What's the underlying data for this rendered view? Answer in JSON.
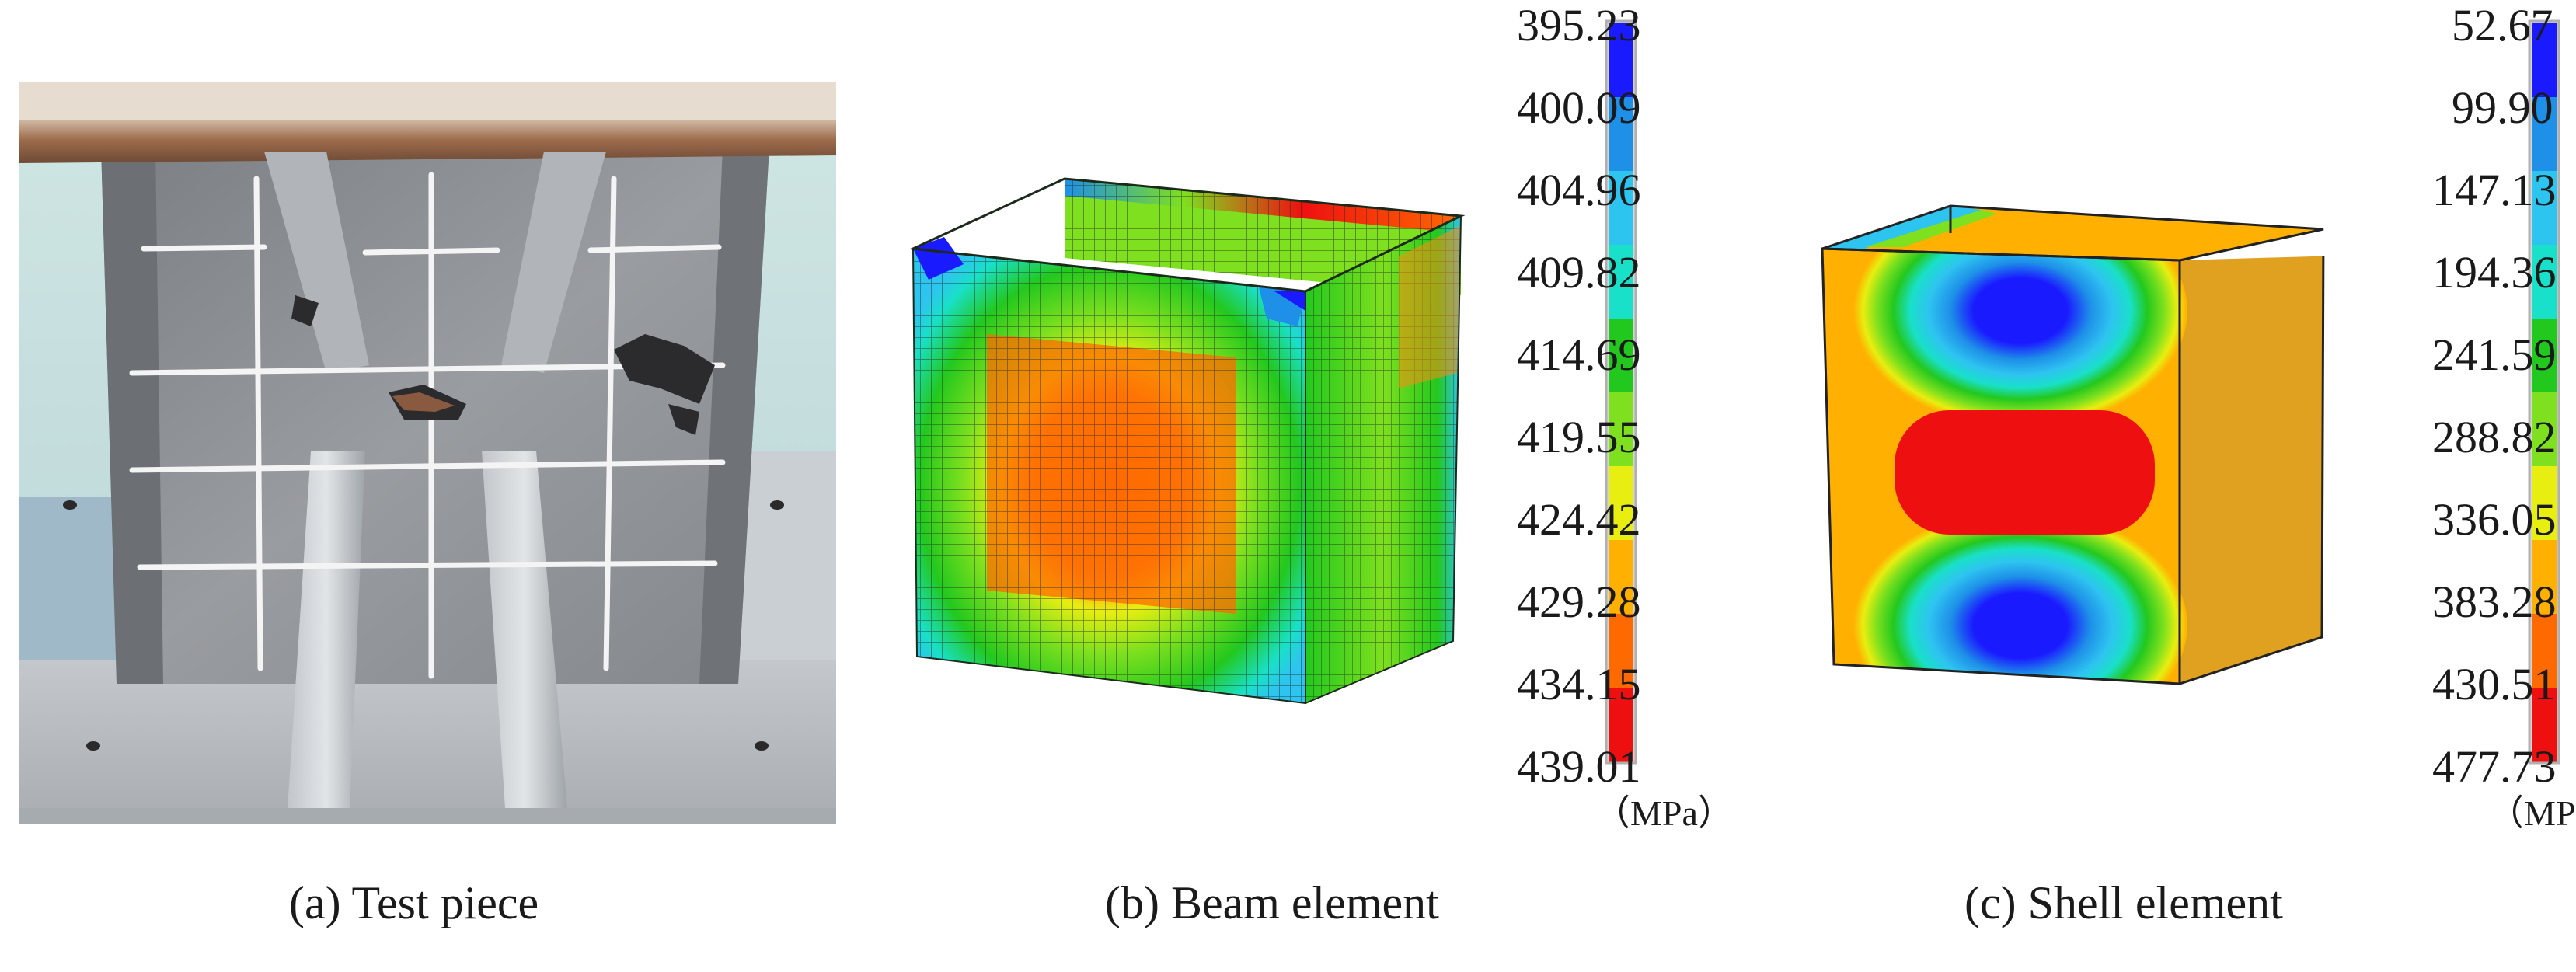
{
  "figure": {
    "panels": [
      {
        "id": "a",
        "caption": "(a) Test piece"
      },
      {
        "id": "b",
        "caption": "(b) Beam element"
      },
      {
        "id": "c",
        "caption": "(c) Shell element"
      }
    ]
  },
  "legend_b": {
    "values": [
      "395.23",
      "400.09",
      "404.96",
      "409.82",
      "414.69",
      "419.55",
      "424.42",
      "429.28",
      "434.15",
      "439.01"
    ],
    "unit": "（MPa）"
  },
  "legend_c": {
    "values": [
      "52.67",
      "99.90",
      "147.13",
      "194.36",
      "241.59",
      "288.82",
      "336.05",
      "383.28",
      "430.51",
      "477.73"
    ],
    "unit": "（MPa）"
  },
  "colors": {
    "scale": [
      "#1a1aff",
      "#1e90e8",
      "#2ec4f0",
      "#19e0c8",
      "#23c81e",
      "#7ee01e",
      "#e8ee10",
      "#ffb000",
      "#ff6a00",
      "#ee1010"
    ],
    "paint_gray": "#8a8d90",
    "rust": "#8a5a40"
  }
}
